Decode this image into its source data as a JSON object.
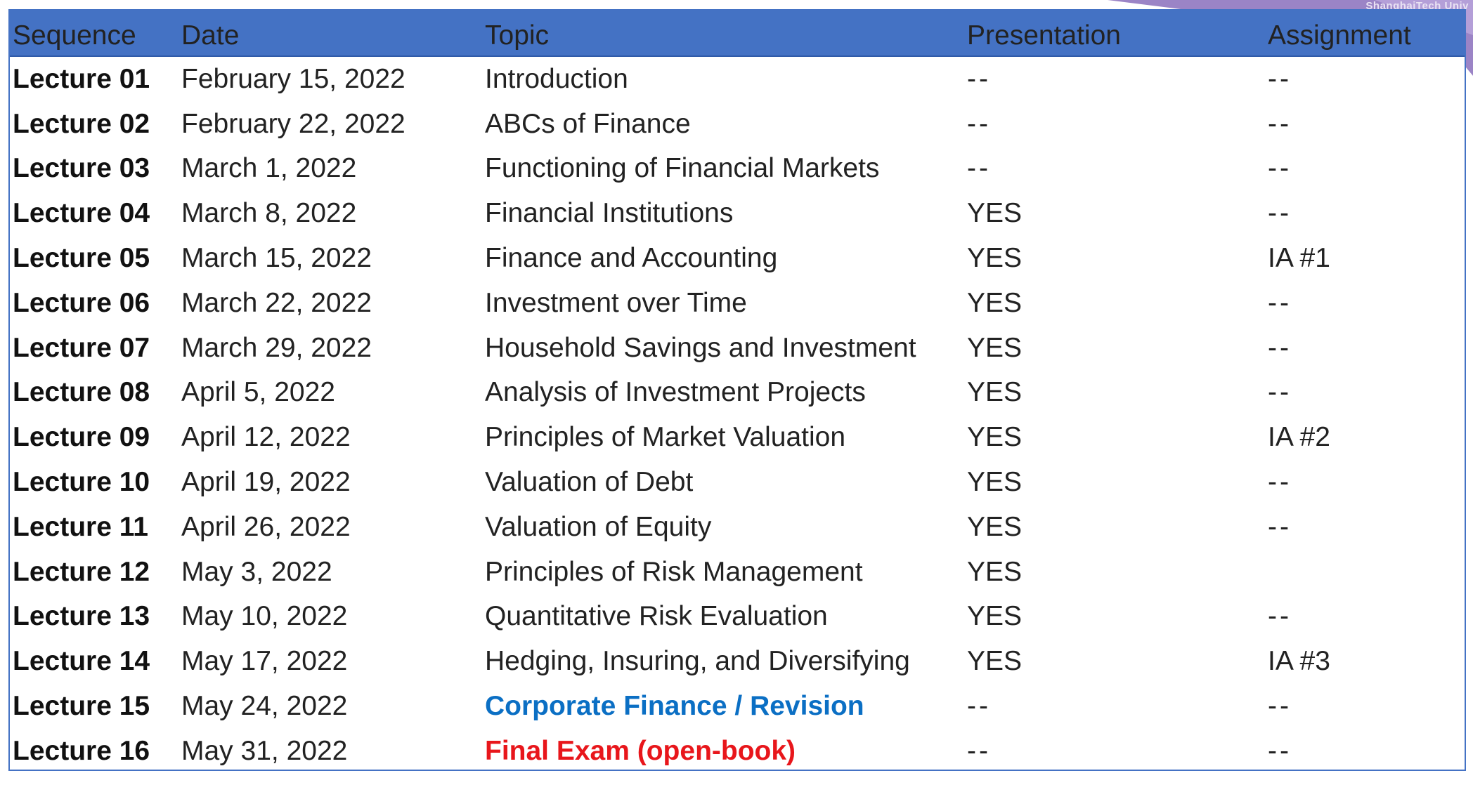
{
  "header": {
    "sequence": "Sequence",
    "date": "Date",
    "topic": "Topic",
    "presentation": "Presentation",
    "assignment": "Assignment"
  },
  "corner_logo": {
    "text": "ShanghaiTech Univ",
    "color": "#9b84c6"
  },
  "colors": {
    "header_bg": "#4472C4",
    "revision": "#0b6fc4",
    "exam": "#e8161b"
  },
  "rows": [
    {
      "sequence": "Lecture 01",
      "date": "February 15, 2022",
      "topic": "Introduction",
      "presentation": "--",
      "assignment": "--"
    },
    {
      "sequence": "Lecture 02",
      "date": "February 22, 2022",
      "topic": "ABCs of Finance",
      "presentation": "--",
      "assignment": "--"
    },
    {
      "sequence": "Lecture 03",
      "date": "March 1, 2022",
      "topic": "Functioning of Financial Markets",
      "presentation": "--",
      "assignment": "--"
    },
    {
      "sequence": "Lecture 04",
      "date": "March 8, 2022",
      "topic": "Financial Institutions",
      "presentation": "YES",
      "assignment": "--"
    },
    {
      "sequence": "Lecture 05",
      "date": "March 15, 2022",
      "topic": "Finance and Accounting",
      "presentation": "YES",
      "assignment": "IA #1"
    },
    {
      "sequence": "Lecture 06",
      "date": "March 22, 2022",
      "topic": "Investment over Time",
      "presentation": "YES",
      "assignment": "--"
    },
    {
      "sequence": "Lecture 07",
      "date": "March 29, 2022",
      "topic": "Household Savings and Investment",
      "presentation": "YES",
      "assignment": "--"
    },
    {
      "sequence": "Lecture 08",
      "date": "April 5, 2022",
      "topic": "Analysis of Investment Projects",
      "presentation": "YES",
      "assignment": "--"
    },
    {
      "sequence": "Lecture 09",
      "date": "April 12, 2022",
      "topic": "Principles of Market Valuation",
      "presentation": "YES",
      "assignment": "IA #2"
    },
    {
      "sequence": "Lecture 10",
      "date": "April 19, 2022",
      "topic": "Valuation of Debt",
      "presentation": "YES",
      "assignment": "--"
    },
    {
      "sequence": "Lecture 11",
      "date": "April 26, 2022",
      "topic": "Valuation of Equity",
      "presentation": "YES",
      "assignment": "--"
    },
    {
      "sequence": "Lecture 12",
      "date": "May 3, 2022",
      "topic": "Principles of Risk Management",
      "presentation": "YES",
      "assignment": ""
    },
    {
      "sequence": "Lecture 13",
      "date": "May 10, 2022",
      "topic": "Quantitative Risk Evaluation",
      "presentation": "YES",
      "assignment": "--"
    },
    {
      "sequence": "Lecture 14",
      "date": "May 17, 2022",
      "topic": "Hedging, Insuring, and Diversifying",
      "presentation": "YES",
      "assignment": "IA #3"
    },
    {
      "sequence": "Lecture 15",
      "date": "May 24, 2022",
      "topic": "Corporate Finance / Revision",
      "presentation": "--",
      "assignment": "--",
      "style": "blue"
    },
    {
      "sequence": "Lecture 16",
      "date": "May 31, 2022",
      "topic": "Final Exam (open-book)",
      "presentation": "--",
      "assignment": "--",
      "style": "red"
    }
  ]
}
